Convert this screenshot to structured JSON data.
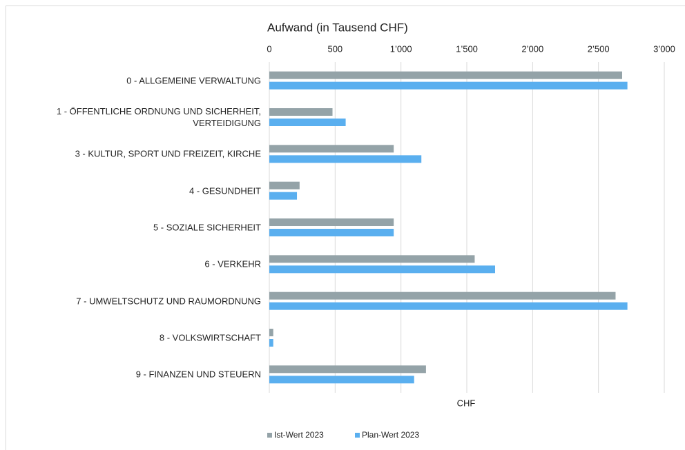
{
  "chart_data": {
    "type": "hbar",
    "title": "Aufwand (in Tausend CHF)",
    "x_label": "CHF",
    "categories": [
      "0 - ALLGEMEINE VERWALTUNG",
      "1 - ÖFFENTLICHE ORDNUNG UND SICHERHEIT,\nVERTEIDIGUNG",
      "3 - KULTUR, SPORT UND FREIZEIT, KIRCHE",
      "4 - GESUNDHEIT",
      "5 - SOZIALE SICHERHEIT",
      "6 - VERKEHR",
      "7 - UMWELTSCHUTZ UND RAUMORDNUNG",
      "8 - VOLKSWIRTSCHAFT",
      "9 - FINANZEN UND STEUERN"
    ],
    "series": [
      {
        "name": "Ist-Wert 2023",
        "color": "#94a3a8",
        "values": [
          2680,
          480,
          945,
          230,
          945,
          1560,
          2630,
          30,
          1190
        ]
      },
      {
        "name": "Plan-Wert 2023",
        "color": "#5aafef",
        "values": [
          2720,
          580,
          1155,
          210,
          945,
          1715,
          2720,
          30,
          1100
        ]
      }
    ],
    "xlim": [
      0,
      3000
    ],
    "xticks": [
      0,
      500,
      {
        "value": 1000,
        "label": "1’000"
      },
      {
        "value": 1500,
        "label": "1’500"
      },
      {
        "value": 2000,
        "label": "2’000"
      },
      {
        "value": 2500,
        "label": "2’500"
      },
      {
        "value": 3000,
        "label": "3’000"
      }
    ],
    "grid": true,
    "legend": "bottom"
  }
}
